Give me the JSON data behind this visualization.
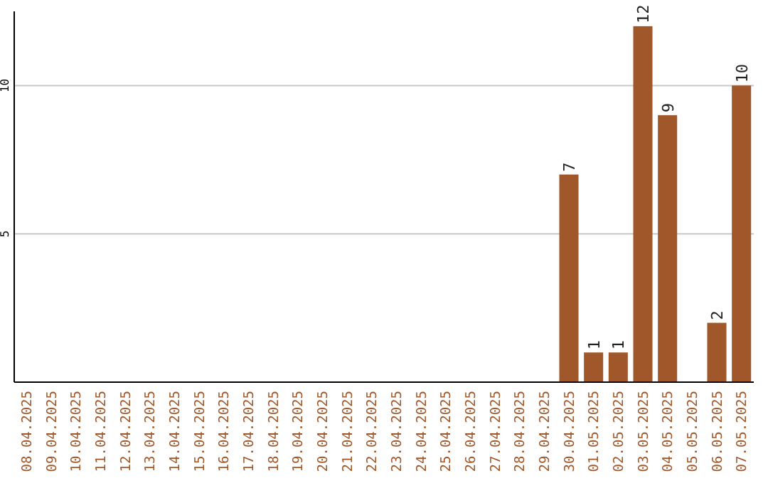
{
  "chart_data": {
    "type": "bar",
    "categories": [
      "08.04.2025",
      "09.04.2025",
      "10.04.2025",
      "11.04.2025",
      "12.04.2025",
      "13.04.2025",
      "14.04.2025",
      "15.04.2025",
      "16.04.2025",
      "17.04.2025",
      "18.04.2025",
      "19.04.2025",
      "20.04.2025",
      "21.04.2025",
      "22.04.2025",
      "23.04.2025",
      "24.04.2025",
      "25.04.2025",
      "26.04.2025",
      "27.04.2025",
      "28.04.2025",
      "29.04.2025",
      "30.04.2025",
      "01.05.2025",
      "02.05.2025",
      "03.05.2025",
      "04.05.2025",
      "05.05.2025",
      "06.05.2025",
      "07.05.2025"
    ],
    "values": [
      0,
      0,
      0,
      0,
      0,
      0,
      0,
      0,
      0,
      0,
      0,
      0,
      0,
      0,
      0,
      0,
      0,
      0,
      0,
      0,
      0,
      0,
      7,
      1,
      1,
      12,
      9,
      0,
      2,
      10
    ],
    "value_labels": [
      null,
      null,
      null,
      null,
      null,
      null,
      null,
      null,
      null,
      null,
      null,
      null,
      null,
      null,
      null,
      null,
      null,
      null,
      null,
      null,
      null,
      null,
      "7",
      "1",
      "1",
      "12",
      "9",
      null,
      "2",
      "10"
    ],
    "color": "#a0582a",
    "ylim": [
      0,
      12.5
    ],
    "yticks": [
      5,
      10
    ],
    "grid": "y"
  }
}
